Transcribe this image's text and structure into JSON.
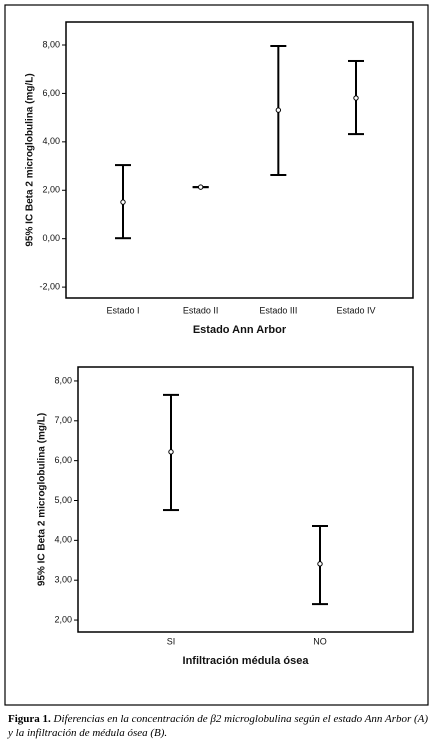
{
  "chart_data": [
    {
      "type": "errorbar",
      "x_label": "Estado Ann Arbor",
      "y_label": "95% IC Beta 2 microglobulina (mg/L)",
      "categories": [
        "Estado I",
        "Estado II",
        "Estado III",
        "Estado IV"
      ],
      "values": [
        1.51,
        2.13,
        5.31,
        5.81
      ],
      "lower": [
        0.02,
        2.13,
        2.63,
        4.32
      ],
      "upper": [
        3.04,
        2.13,
        7.96,
        7.34
      ],
      "ylim": [
        -2.45,
        8.95
      ],
      "yticks": [
        {
          "value": -2,
          "label": "-2,00"
        },
        {
          "value": 0,
          "label": "0,00"
        },
        {
          "value": 2,
          "label": "2,00"
        },
        {
          "value": 4,
          "label": "4,00"
        },
        {
          "value": 6,
          "label": "6,00"
        },
        {
          "value": 8,
          "label": "8,00"
        }
      ],
      "color": "#000000"
    },
    {
      "type": "errorbar",
      "x_label": "Infiltración médula ósea",
      "y_label": "95% IC Beta 2 microglobulina (mg/L)",
      "categories": [
        "SI",
        "NO"
      ],
      "values": [
        6.22,
        3.41
      ],
      "lower": [
        4.76,
        2.4
      ],
      "upper": [
        7.65,
        4.36
      ],
      "ylim": [
        1.7,
        8.35
      ],
      "yticks": [
        {
          "value": 2,
          "label": "2,00"
        },
        {
          "value": 3,
          "label": "3,00"
        },
        {
          "value": 4,
          "label": "4,00"
        },
        {
          "value": 5,
          "label": "5,00"
        },
        {
          "value": 6,
          "label": "6,00"
        },
        {
          "value": 7,
          "label": "7,00"
        },
        {
          "value": 8,
          "label": "8,00"
        }
      ],
      "color": "#000000"
    }
  ],
  "caption_label": "Figura 1.",
  "caption": "Diferencias en la concentración de β2 microglobulina según el estado Ann Arbor (A) y la infiltración de médula ósea (B)."
}
